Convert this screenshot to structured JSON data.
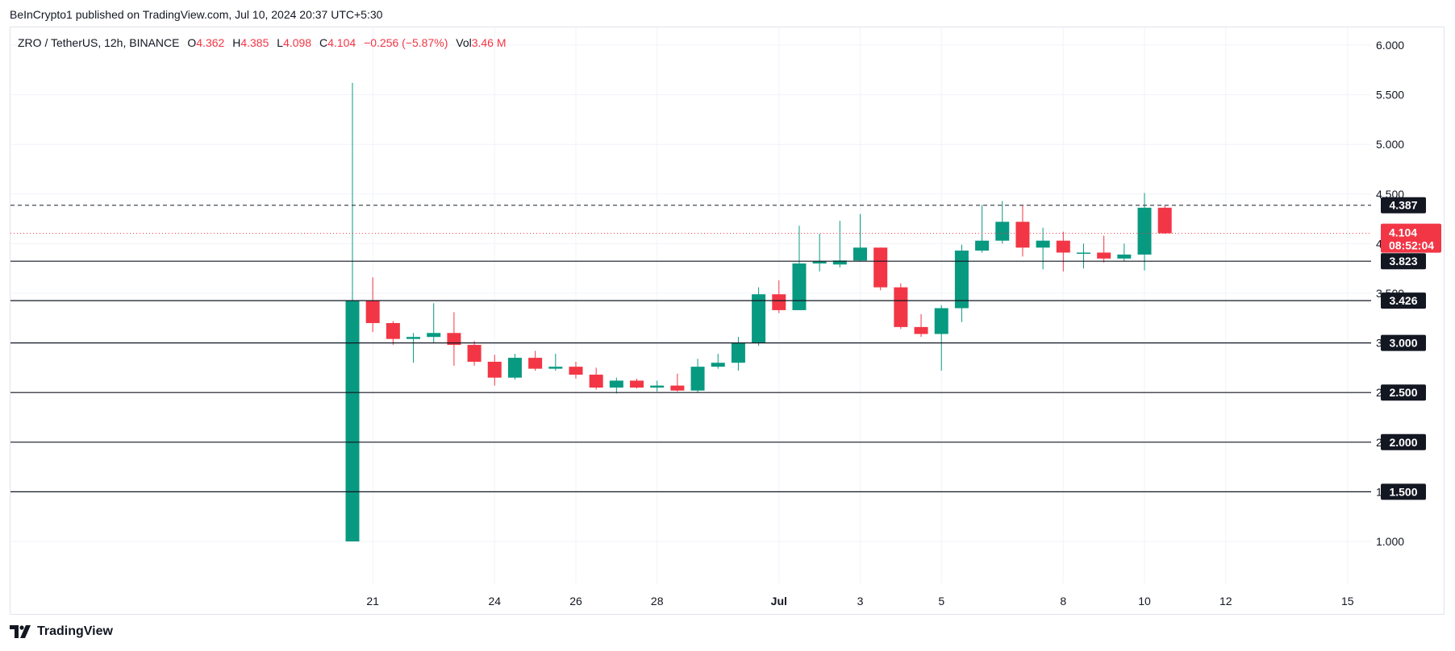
{
  "header": {
    "published": "BeInCrypto1 published on TradingView.com, Jul 10, 2024 20:37 UTC+5:30"
  },
  "legend": {
    "symbol": "ZRO / TetherUS, 12h, BINANCE",
    "open_label": "O",
    "open": "4.362",
    "high_label": "H",
    "high": "4.385",
    "low_label": "L",
    "low": "4.098",
    "close_label": "C",
    "close": "4.104",
    "change": "−0.256 (−5.87%)",
    "vol_label": "Vol",
    "vol": "3.46 M"
  },
  "footer": {
    "brand": "TradingView",
    "logo_icon": "tradingview-logo-icon"
  },
  "colors": {
    "up": "#089981",
    "down": "#f23645",
    "line": "#131722",
    "grid": "#f0f3fa"
  },
  "price_badge": {
    "value": "4.104",
    "countdown": "08:52:04"
  },
  "chart_data": {
    "type": "candlestick",
    "ylim": [
      0.5,
      6.2
    ],
    "y_ticks": [
      "1.000",
      "1.500",
      "2.000",
      "2.500",
      "3.000",
      "3.500",
      "4.000",
      "4.500",
      "5.000",
      "5.500",
      "6.000"
    ],
    "x_ticks": [
      {
        "label": "21",
        "i": 1
      },
      {
        "label": "24",
        "i": 7
      },
      {
        "label": "26",
        "i": 11
      },
      {
        "label": "28",
        "i": 15
      },
      {
        "label": "Jul",
        "i": 21,
        "bold": true
      },
      {
        "label": "3",
        "i": 25
      },
      {
        "label": "5",
        "i": 29
      },
      {
        "label": "8",
        "i": 35
      },
      {
        "label": "10",
        "i": 39
      },
      {
        "label": "12",
        "i": 43
      },
      {
        "label": "15",
        "i": 49
      }
    ],
    "horizontal_levels": [
      "3.823",
      "3.426",
      "3.000",
      "2.500",
      "2.000",
      "1.500"
    ],
    "resistance_level": "4.387",
    "current_price": 4.104,
    "candles": [
      {
        "o": 1.0,
        "h": 5.62,
        "l": 1.0,
        "c": 3.43
      },
      {
        "o": 3.43,
        "h": 3.66,
        "l": 3.11,
        "c": 3.2
      },
      {
        "o": 3.2,
        "h": 3.22,
        "l": 2.98,
        "c": 3.04
      },
      {
        "o": 3.04,
        "h": 3.1,
        "l": 2.8,
        "c": 3.06
      },
      {
        "o": 3.06,
        "h": 3.4,
        "l": 3.0,
        "c": 3.1
      },
      {
        "o": 3.1,
        "h": 3.31,
        "l": 2.77,
        "c": 2.98
      },
      {
        "o": 2.98,
        "h": 3.02,
        "l": 2.77,
        "c": 2.81
      },
      {
        "o": 2.81,
        "h": 2.88,
        "l": 2.57,
        "c": 2.65
      },
      {
        "o": 2.65,
        "h": 2.89,
        "l": 2.63,
        "c": 2.85
      },
      {
        "o": 2.85,
        "h": 2.92,
        "l": 2.72,
        "c": 2.74
      },
      {
        "o": 2.74,
        "h": 2.89,
        "l": 2.72,
        "c": 2.76
      },
      {
        "o": 2.76,
        "h": 2.81,
        "l": 2.64,
        "c": 2.68
      },
      {
        "o": 2.68,
        "h": 2.75,
        "l": 2.53,
        "c": 2.55
      },
      {
        "o": 2.55,
        "h": 2.65,
        "l": 2.49,
        "c": 2.62
      },
      {
        "o": 2.62,
        "h": 2.64,
        "l": 2.54,
        "c": 2.55
      },
      {
        "o": 2.55,
        "h": 2.62,
        "l": 2.51,
        "c": 2.57
      },
      {
        "o": 2.57,
        "h": 2.69,
        "l": 2.51,
        "c": 2.52
      },
      {
        "o": 2.52,
        "h": 2.84,
        "l": 2.5,
        "c": 2.76
      },
      {
        "o": 2.76,
        "h": 2.89,
        "l": 2.74,
        "c": 2.8
      },
      {
        "o": 2.8,
        "h": 3.06,
        "l": 2.72,
        "c": 3.0
      },
      {
        "o": 3.0,
        "h": 3.56,
        "l": 2.97,
        "c": 3.49
      },
      {
        "o": 3.49,
        "h": 3.63,
        "l": 3.3,
        "c": 3.33
      },
      {
        "o": 3.33,
        "h": 4.18,
        "l": 3.33,
        "c": 3.8
      },
      {
        "o": 3.8,
        "h": 4.1,
        "l": 3.72,
        "c": 3.82
      },
      {
        "o": 3.79,
        "h": 4.23,
        "l": 3.76,
        "c": 3.83
      },
      {
        "o": 3.83,
        "h": 4.3,
        "l": 3.82,
        "c": 3.96
      },
      {
        "o": 3.96,
        "h": 3.96,
        "l": 3.53,
        "c": 3.56
      },
      {
        "o": 3.56,
        "h": 3.6,
        "l": 3.14,
        "c": 3.16
      },
      {
        "o": 3.16,
        "h": 3.29,
        "l": 3.06,
        "c": 3.09
      },
      {
        "o": 3.09,
        "h": 3.38,
        "l": 2.72,
        "c": 3.35
      },
      {
        "o": 3.35,
        "h": 3.99,
        "l": 3.21,
        "c": 3.93
      },
      {
        "o": 3.93,
        "h": 4.39,
        "l": 3.91,
        "c": 4.03
      },
      {
        "o": 4.03,
        "h": 4.43,
        "l": 4.0,
        "c": 4.22
      },
      {
        "o": 4.22,
        "h": 4.39,
        "l": 3.87,
        "c": 3.96
      },
      {
        "o": 3.96,
        "h": 4.16,
        "l": 3.74,
        "c": 4.03
      },
      {
        "o": 4.03,
        "h": 4.12,
        "l": 3.72,
        "c": 3.91
      },
      {
        "o": 3.91,
        "h": 4.0,
        "l": 3.75,
        "c": 3.91
      },
      {
        "o": 3.91,
        "h": 4.08,
        "l": 3.81,
        "c": 3.85
      },
      {
        "o": 3.85,
        "h": 4.0,
        "l": 3.82,
        "c": 3.89
      },
      {
        "o": 3.89,
        "h": 4.51,
        "l": 3.73,
        "c": 4.362
      },
      {
        "o": 4.362,
        "h": 4.385,
        "l": 4.098,
        "c": 4.104
      }
    ]
  }
}
